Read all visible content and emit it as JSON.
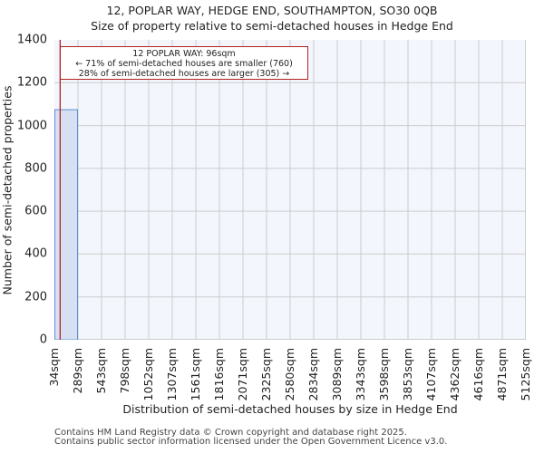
{
  "header": {
    "title": "12, POPLAR WAY, HEDGE END, SOUTHAMPTON, SO30 0QB",
    "subtitle": "Size of property relative to semi-detached houses in Hedge End"
  },
  "annotation": {
    "line1": "12 POPLAR WAY: 96sqm",
    "line2": "← 71% of semi-detached houses are smaller (760)",
    "line3": "28% of semi-detached houses are larger (305) →"
  },
  "footer": {
    "line1": "Contains HM Land Registry data © Crown copyright and database right 2025.",
    "line2": "Contains public sector information licensed under the Open Government Licence v3.0."
  },
  "colors": {
    "bar_fill": "#d6e0f2",
    "bar_edge": "#5b8fd1",
    "marker_line": "#b22222",
    "plot_bg": "#f3f6fd",
    "grid": "#cccccc"
  },
  "chart_data": {
    "type": "bar",
    "title": "12, POPLAR WAY, HEDGE END, SOUTHAMPTON, SO30 0QB",
    "subtitle": "Size of property relative to semi-detached houses in Hedge End",
    "xlabel": "Distribution of semi-detached houses by size in Hedge End",
    "ylabel": "Number of semi-detached properties",
    "categories": [
      "34sqm",
      "289sqm",
      "543sqm",
      "798sqm",
      "1052sqm",
      "1307sqm",
      "1561sqm",
      "1816sqm",
      "2071sqm",
      "2325sqm",
      "2580sqm",
      "2834sqm",
      "3089sqm",
      "3343sqm",
      "3598sqm",
      "3853sqm",
      "4107sqm",
      "4362sqm",
      "4616sqm",
      "4871sqm",
      "5125sqm"
    ],
    "values": [
      1074,
      0,
      0,
      0,
      0,
      0,
      0,
      0,
      0,
      0,
      0,
      0,
      0,
      0,
      0,
      0,
      0,
      0,
      0,
      0
    ],
    "yticks": [
      0,
      200,
      400,
      600,
      800,
      1000,
      1200,
      1400
    ],
    "ylim": [
      0,
      1400
    ],
    "grid": true,
    "marker": {
      "value_sqm": 96,
      "label": "12 POPLAR WAY: 96sqm"
    },
    "annotations": [
      "12 POPLAR WAY: 96sqm",
      "← 71% of semi-detached houses are smaller (760)",
      "28% of semi-detached houses are larger (305) →"
    ]
  }
}
